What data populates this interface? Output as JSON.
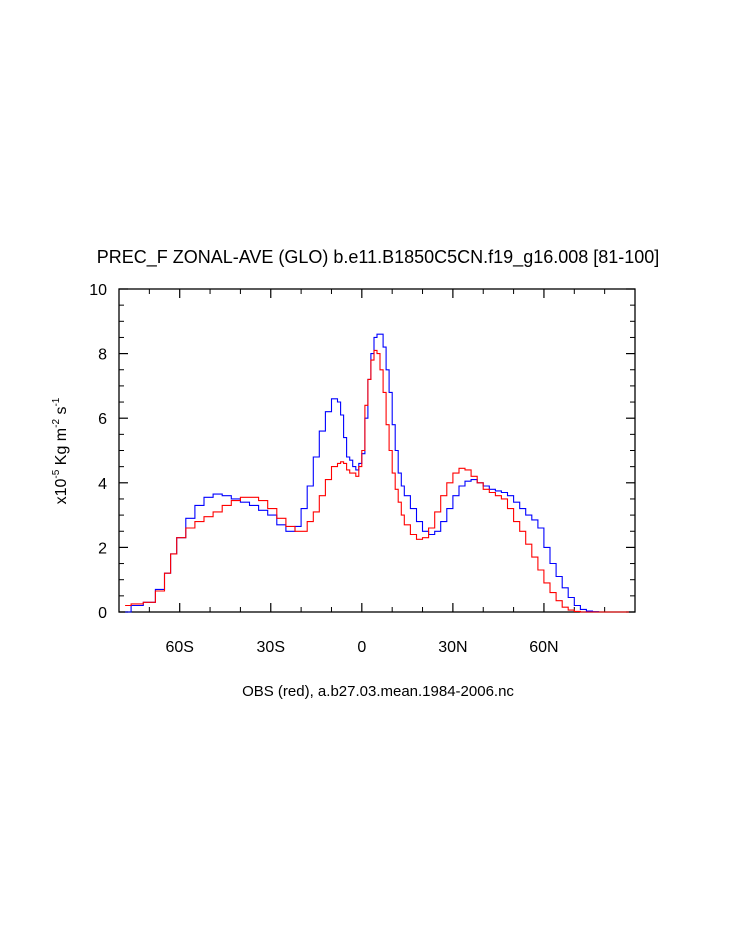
{
  "chart_data": {
    "type": "line",
    "title": "PREC_F ZONAL-AVE (GLO) b.e11.B1850C5CN.f19_g16.008 [81-100]",
    "subtitle": "OBS (red), a.b27.03.mean.1984-2006.nc",
    "ylabel": {
      "base": "x10",
      "exp1": "-5",
      "mid": " Kg m",
      "exp2": "-2",
      "mid2": " s",
      "exp3": "-1"
    },
    "xlim": [
      -80,
      90
    ],
    "ylim": [
      0,
      10
    ],
    "xticks": [
      {
        "value": -60,
        "label": "60S"
      },
      {
        "value": -30,
        "label": "30S"
      },
      {
        "value": 0,
        "label": "0"
      },
      {
        "value": 30,
        "label": "30N"
      },
      {
        "value": 60,
        "label": "60N"
      }
    ],
    "yticks": [
      {
        "value": 0,
        "label": "0"
      },
      {
        "value": 2,
        "label": "2"
      },
      {
        "value": 4,
        "label": "4"
      },
      {
        "value": 6,
        "label": "6"
      },
      {
        "value": 8,
        "label": "8"
      },
      {
        "value": 10,
        "label": "10"
      }
    ],
    "series": [
      {
        "name": "Model (b.e11.B1850C5CN.f19_g16.008)",
        "color": "#0000ff",
        "x": [
          -78,
          -76,
          -72,
          -68,
          -65,
          -63,
          -61,
          -58,
          -55,
          -52,
          -49,
          -46,
          -43,
          -40,
          -37,
          -34,
          -31,
          -28,
          -25,
          -22,
          -20,
          -18,
          -16,
          -14,
          -12,
          -10,
          -8,
          -7,
          -6,
          -5,
          -4,
          -3,
          -2,
          -1,
          0,
          1,
          2,
          3,
          4,
          5,
          6,
          7,
          8,
          9,
          10,
          11,
          12,
          13,
          14,
          16,
          18,
          20,
          22,
          24,
          26,
          28,
          30,
          32,
          34,
          36,
          38,
          40,
          42,
          44,
          46,
          48,
          50,
          52,
          54,
          56,
          58,
          60,
          62,
          64,
          66,
          68,
          70,
          72,
          74,
          76,
          78,
          80,
          82,
          85,
          88
        ],
        "y": [
          0,
          0.2,
          0.3,
          0.7,
          1.2,
          1.8,
          2.3,
          2.9,
          3.3,
          3.55,
          3.65,
          3.6,
          3.5,
          3.4,
          3.3,
          3.15,
          3.0,
          2.7,
          2.5,
          2.65,
          3.2,
          3.9,
          4.8,
          5.6,
          6.2,
          6.6,
          6.5,
          6.1,
          5.4,
          4.8,
          4.7,
          4.5,
          4.4,
          4.6,
          4.9,
          6.0,
          7.2,
          8.0,
          8.5,
          8.6,
          8.6,
          8.2,
          7.5,
          6.8,
          5.8,
          5.0,
          4.3,
          3.9,
          3.6,
          3.2,
          2.8,
          2.5,
          2.4,
          2.5,
          2.8,
          3.2,
          3.6,
          3.9,
          4.05,
          4.1,
          4.0,
          3.9,
          3.8,
          3.75,
          3.7,
          3.6,
          3.4,
          3.2,
          3.0,
          2.85,
          2.6,
          2.0,
          1.5,
          1.1,
          0.75,
          0.45,
          0.2,
          0.08,
          0.03,
          0.01,
          0,
          0,
          0,
          0,
          0
        ]
      },
      {
        "name": "OBS (a.b27.03.mean.1984-2006.nc)",
        "color": "#ff0000",
        "x": [
          -78,
          -76,
          -72,
          -68,
          -65,
          -63,
          -61,
          -58,
          -55,
          -52,
          -49,
          -46,
          -43,
          -40,
          -37,
          -34,
          -31,
          -28,
          -25,
          -22,
          -20,
          -18,
          -16,
          -14,
          -12,
          -10,
          -8,
          -7,
          -6,
          -5,
          -4,
          -3,
          -2,
          -1,
          0,
          1,
          2,
          3,
          4,
          5,
          6,
          7,
          8,
          9,
          10,
          11,
          12,
          13,
          14,
          16,
          18,
          20,
          22,
          24,
          26,
          28,
          30,
          32,
          34,
          36,
          38,
          40,
          42,
          44,
          46,
          48,
          50,
          52,
          54,
          56,
          58,
          60,
          62,
          64,
          66,
          68,
          70,
          72,
          74,
          76,
          78,
          80,
          82,
          85,
          88
        ],
        "y": [
          0.2,
          0.25,
          0.3,
          0.65,
          1.2,
          1.8,
          2.3,
          2.6,
          2.8,
          2.95,
          3.1,
          3.3,
          3.45,
          3.55,
          3.55,
          3.45,
          3.2,
          2.9,
          2.65,
          2.5,
          2.5,
          2.8,
          3.1,
          3.6,
          4.1,
          4.5,
          4.6,
          4.65,
          4.6,
          4.4,
          4.3,
          4.3,
          4.2,
          4.5,
          5.0,
          6.4,
          7.2,
          7.8,
          8.1,
          8.0,
          7.5,
          6.8,
          5.8,
          5.0,
          4.3,
          3.8,
          3.4,
          3.0,
          2.7,
          2.4,
          2.25,
          2.3,
          2.6,
          3.1,
          3.6,
          4.0,
          4.3,
          4.45,
          4.4,
          4.2,
          4.0,
          3.8,
          3.7,
          3.6,
          3.5,
          3.2,
          2.8,
          2.5,
          2.1,
          1.7,
          1.3,
          0.9,
          0.6,
          0.35,
          0.15,
          0.06,
          0.02,
          0,
          0,
          0,
          0,
          0,
          0,
          0,
          0
        ]
      }
    ]
  }
}
